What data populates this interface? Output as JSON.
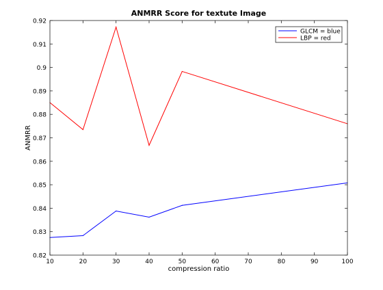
{
  "chart_data": {
    "type": "line",
    "title": "ANMRR Score for textute Image",
    "xlabel": "compression ratio",
    "ylabel": "ANMRR",
    "xlim": [
      10,
      100
    ],
    "ylim": [
      0.82,
      0.92
    ],
    "xticks": [
      10,
      20,
      30,
      40,
      50,
      60,
      70,
      80,
      90,
      100
    ],
    "yticks": [
      0.82,
      0.83,
      0.84,
      0.85,
      0.86,
      0.87,
      0.88,
      0.89,
      0.9,
      0.91,
      0.92
    ],
    "xtick_labels": [
      "10",
      "20",
      "30",
      "40",
      "50",
      "60",
      "70",
      "80",
      "90",
      "100"
    ],
    "ytick_labels": [
      "0.82",
      "0.83",
      "0.84",
      "0.85",
      "0.86",
      "0.87",
      "0.88",
      "0.89",
      "0.9",
      "0.91",
      "0.92"
    ],
    "grid": false,
    "legend_position": "top-right",
    "series": [
      {
        "name": "GLCM = blue",
        "color": "#0000ff",
        "x": [
          10,
          20,
          30,
          40,
          50,
          100
        ],
        "y": [
          0.8275,
          0.8283,
          0.8388,
          0.8362,
          0.8412,
          0.8508
        ]
      },
      {
        "name": "LBP = red",
        "color": "#ff0000",
        "x": [
          10,
          20,
          30,
          40,
          50,
          100
        ],
        "y": [
          0.885,
          0.8735,
          0.9172,
          0.8668,
          0.8983,
          0.876
        ]
      }
    ]
  }
}
